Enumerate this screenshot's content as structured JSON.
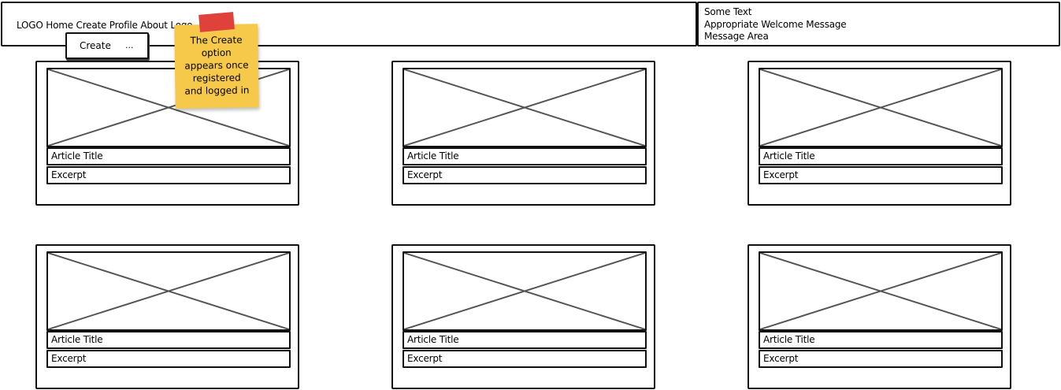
{
  "header": {
    "nav_text": "LOGO Home Create Profile About Logo",
    "message_lines": [
      "Some Text",
      "Appropriate Welcome Message",
      "Message Area"
    ]
  },
  "dropdown": {
    "label": "Create",
    "more": "..."
  },
  "sticky_note": {
    "text": "The Create\noption\nappears once\nregistered\nand logged in",
    "color": "#f6c94a",
    "tape_color": "#e0413a"
  },
  "cards": [
    {
      "title": "Article Title",
      "excerpt": "Excerpt"
    },
    {
      "title": "Article Title",
      "excerpt": "Excerpt"
    },
    {
      "title": "Article Title",
      "excerpt": "Excerpt"
    },
    {
      "title": "Article Title",
      "excerpt": "Excerpt"
    },
    {
      "title": "Article Title",
      "excerpt": "Excerpt"
    },
    {
      "title": "Article Title",
      "excerpt": "Excerpt"
    }
  ]
}
